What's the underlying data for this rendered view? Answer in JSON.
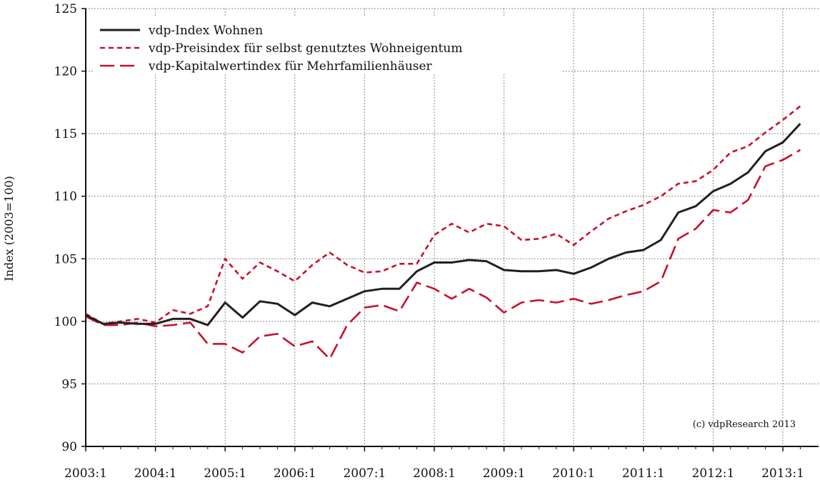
{
  "chart_data": {
    "type": "line",
    "title": "",
    "xlabel": "",
    "ylabel": "Index (2003=100)",
    "ylim": [
      90,
      125
    ],
    "yticks": [
      "90",
      "95",
      "100",
      "105",
      "110",
      "115",
      "120",
      "125"
    ],
    "x_quarters": [
      "2003:1",
      "2003:2",
      "2003:3",
      "2003:4",
      "2004:1",
      "2004:2",
      "2004:3",
      "2004:4",
      "2005:1",
      "2005:2",
      "2005:3",
      "2005:4",
      "2006:1",
      "2006:2",
      "2006:3",
      "2006:4",
      "2007:1",
      "2007:2",
      "2007:3",
      "2007:4",
      "2008:1",
      "2008:2",
      "2008:3",
      "2008:4",
      "2009:1",
      "2009:2",
      "2009:3",
      "2009:4",
      "2010:1",
      "2010:2",
      "2010:3",
      "2010:4",
      "2011:1",
      "2011:2",
      "2011:3",
      "2011:4",
      "2012:1",
      "2012:2",
      "2012:3",
      "2012:4",
      "2013:1",
      "2013:2"
    ],
    "xticks": [
      "2003:1",
      "2004:1",
      "2005:1",
      "2006:1",
      "2007:1",
      "2008:1",
      "2009:1",
      "2010:1",
      "2011:1",
      "2012:1",
      "2013:1"
    ],
    "grid": true,
    "legend_position": "top-left",
    "note": "(c) vdpResearch 2013",
    "series": [
      {
        "name": "vdp-Index Wohnen",
        "color": "#231f20",
        "style": "solid",
        "values": [
          100.5,
          99.8,
          99.9,
          99.8,
          99.8,
          100.2,
          100.2,
          99.7,
          101.5,
          100.3,
          101.6,
          101.4,
          100.5,
          101.5,
          101.2,
          101.8,
          102.4,
          102.6,
          102.6,
          104.0,
          104.7,
          104.7,
          104.9,
          104.8,
          104.1,
          104.0,
          104.0,
          104.1,
          103.8,
          104.3,
          105.0,
          105.5,
          105.7,
          106.5,
          108.7,
          109.2,
          110.4,
          111.0,
          111.9,
          113.6,
          114.3,
          115.8
        ]
      },
      {
        "name": "vdp-Preisindex für selbst genutztes Wohneigentum",
        "color": "#c8102e",
        "style": "short-dash",
        "values": [
          100.6,
          99.8,
          100.0,
          100.2,
          99.9,
          100.9,
          100.6,
          101.2,
          105.0,
          103.4,
          104.7,
          104.0,
          103.2,
          104.5,
          105.5,
          104.5,
          103.9,
          104.0,
          104.6,
          104.6,
          106.9,
          107.8,
          107.1,
          107.8,
          107.6,
          106.5,
          106.6,
          107.0,
          106.1,
          107.2,
          108.2,
          108.8,
          109.3,
          110.0,
          111.0,
          111.2,
          112.1,
          113.5,
          114.0,
          115.1,
          116.1,
          117.2
        ]
      },
      {
        "name": "vdp-Kapitalwertindex für Mehrfamilienhäuser",
        "color": "#c8102e",
        "style": "long-dash",
        "values": [
          100.4,
          99.7,
          99.7,
          99.9,
          99.6,
          99.7,
          99.9,
          98.2,
          98.2,
          97.5,
          98.8,
          99.0,
          98.0,
          98.4,
          97.0,
          99.7,
          101.1,
          101.3,
          100.8,
          103.1,
          102.6,
          101.8,
          102.6,
          101.9,
          100.7,
          101.5,
          101.7,
          101.5,
          101.8,
          101.4,
          101.7,
          102.1,
          102.4,
          103.2,
          106.6,
          107.4,
          108.9,
          108.7,
          109.7,
          112.4,
          112.9,
          113.7
        ]
      }
    ]
  }
}
